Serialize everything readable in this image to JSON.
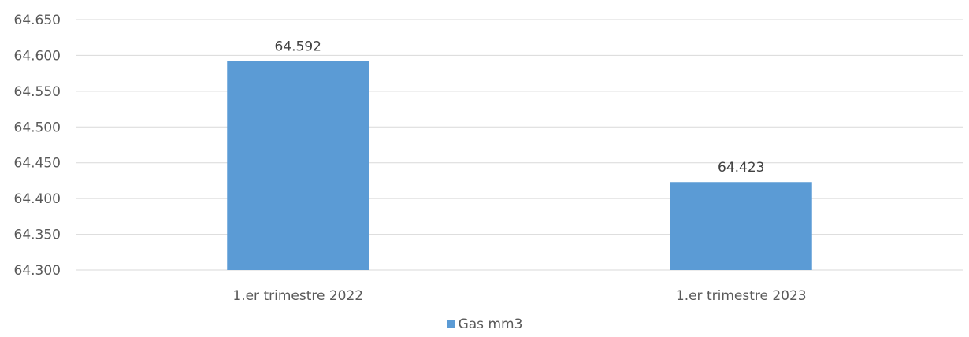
{
  "chart_data": {
    "type": "bar",
    "categories": [
      "1.er trimestre 2022",
      "1.er trimestre 2023"
    ],
    "series": [
      {
        "name": "Gas mm3",
        "values": [
          64592,
          64423
        ],
        "color": "#5b9bd5"
      }
    ],
    "data_labels": [
      "64.592",
      "64.423"
    ],
    "ylim": [
      64300,
      64650
    ],
    "yticks": [
      64300,
      64350,
      64400,
      64450,
      64500,
      64550,
      64600,
      64650
    ],
    "ytick_labels": [
      "64.300",
      "64.350",
      "64.400",
      "64.450",
      "64.500",
      "64.550",
      "64.600",
      "64.650"
    ],
    "grid": true,
    "legend_position": "bottom",
    "title": "",
    "xlabel": "",
    "ylabel": ""
  }
}
